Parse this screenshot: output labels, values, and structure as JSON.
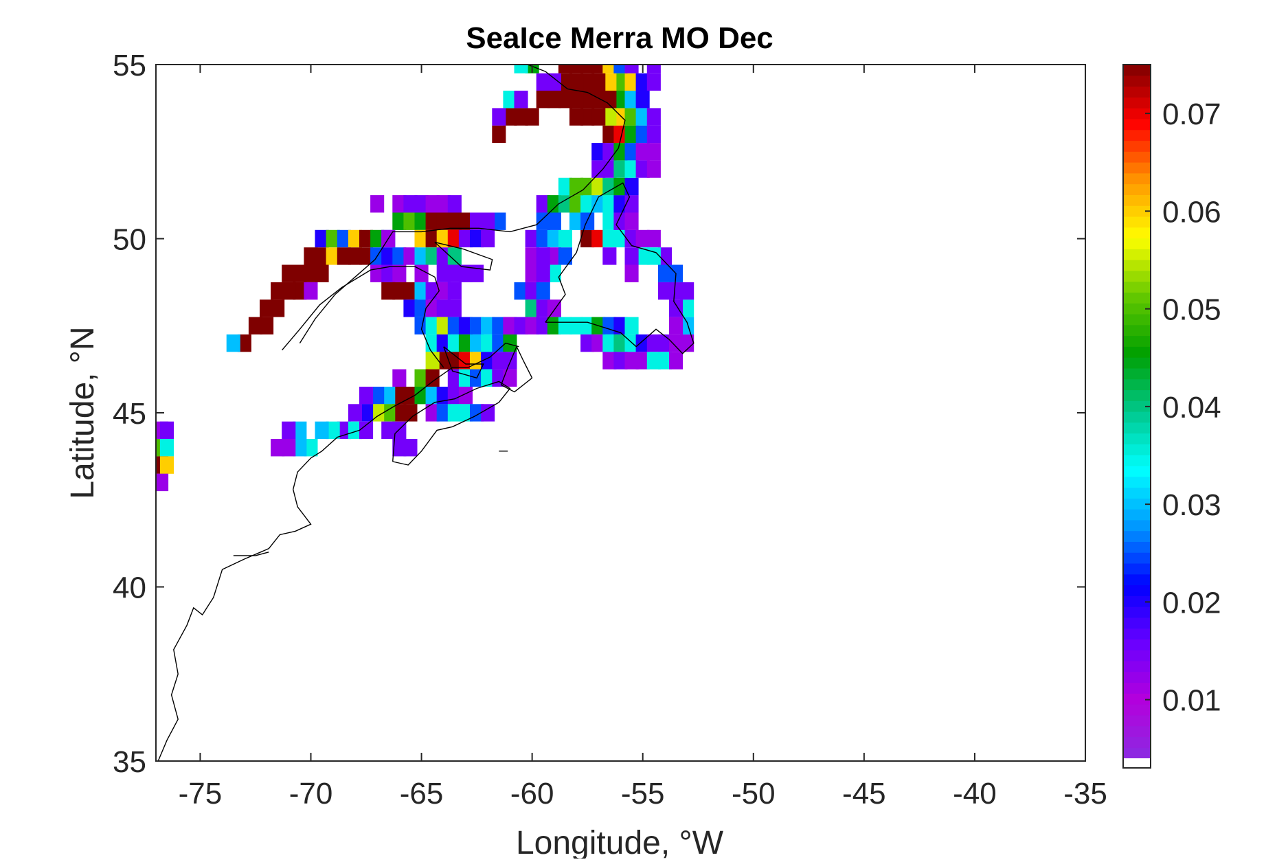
{
  "chart_data": {
    "type": "heatmap",
    "title": "SeaIce Merra MO Dec",
    "xlabel": "Longitude, °W",
    "ylabel": "Latitude, °N",
    "xlim": [
      -77,
      -35
    ],
    "ylim": [
      35,
      55
    ],
    "x_ticks": [
      -75,
      -70,
      -65,
      -60,
      -55,
      -50,
      -45,
      -40,
      -35
    ],
    "y_ticks": [
      35,
      40,
      45,
      50,
      55
    ],
    "colorbar": {
      "range": [
        0.004,
        0.075
      ],
      "ticks": [
        0.01,
        0.02,
        0.03,
        0.04,
        0.05,
        0.06,
        0.07
      ],
      "tick_labels": [
        "0.01",
        "0.02",
        "0.03",
        "0.04",
        "0.05",
        "0.06",
        "0.07"
      ],
      "colors": [
        "#8a2be2",
        "#b400dc",
        "#6a00ff",
        "#0000ff",
        "#0096ff",
        "#00ffff",
        "#00c88c",
        "#00a000",
        "#64c800",
        "#ffff00",
        "#ff9600",
        "#ff0000",
        "#7f0000"
      ]
    },
    "grid_step": [
      0.625,
      0.5
    ],
    "cells": [
      [
        -73.0,
        47.0,
        0.075
      ],
      [
        -72.5,
        47.5,
        0.075
      ],
      [
        -72.0,
        48.0,
        0.075
      ],
      [
        -71.5,
        48.5,
        0.075
      ],
      [
        -71.0,
        49.0,
        0.075
      ],
      [
        -70.5,
        49.0,
        0.075
      ],
      [
        -70.0,
        49.5,
        0.075
      ],
      [
        -69.5,
        49.5,
        0.075
      ],
      [
        -69.0,
        49.5,
        0.06
      ],
      [
        -68.5,
        49.5,
        0.075
      ],
      [
        -68.0,
        49.5,
        0.075
      ],
      [
        -67.5,
        49.5,
        0.075
      ],
      [
        -69.5,
        49.0,
        0.075
      ],
      [
        -70.0,
        49.0,
        0.075
      ],
      [
        -70.5,
        48.5,
        0.075
      ],
      [
        -71.0,
        48.5,
        0.075
      ],
      [
        -71.5,
        48.0,
        0.075
      ],
      [
        -72.0,
        47.5,
        0.075
      ],
      [
        -73.5,
        47.0,
        0.03
      ],
      [
        -70.0,
        48.5,
        0.012
      ],
      [
        -69.5,
        50.0,
        0.02
      ],
      [
        -69.0,
        50.0,
        0.05
      ],
      [
        -68.5,
        50.0,
        0.025
      ],
      [
        -68.0,
        50.0,
        0.06
      ],
      [
        -67.5,
        50.0,
        0.075
      ],
      [
        -67.0,
        50.0,
        0.045
      ],
      [
        -66.5,
        50.0,
        0.025
      ],
      [
        -66.0,
        50.5,
        0.045
      ],
      [
        -65.5,
        50.5,
        0.05
      ],
      [
        -65.0,
        50.5,
        0.045
      ],
      [
        -64.5,
        50.5,
        0.075
      ],
      [
        -64.0,
        50.5,
        0.075
      ],
      [
        -63.5,
        50.5,
        0.075
      ],
      [
        -63.0,
        50.5,
        0.075
      ],
      [
        -67.0,
        51.0,
        0.012
      ],
      [
        -66.0,
        51.0,
        0.012
      ],
      [
        -65.5,
        51.0,
        0.015
      ],
      [
        -65.0,
        51.0,
        0.015
      ],
      [
        -64.5,
        51.0,
        0.012
      ],
      [
        -64.0,
        51.0,
        0.012
      ],
      [
        -63.5,
        51.0,
        0.015
      ],
      [
        -67.0,
        49.5,
        0.025
      ],
      [
        -66.5,
        49.5,
        0.02
      ],
      [
        -66.0,
        49.5,
        0.025
      ],
      [
        -65.5,
        49.5,
        0.012
      ],
      [
        -65.0,
        49.5,
        0.03
      ],
      [
        -64.5,
        49.5,
        0.04
      ],
      [
        -64.0,
        49.5,
        0.015
      ],
      [
        -63.5,
        49.5,
        0.04
      ],
      [
        -66.5,
        50.0,
        0.012
      ],
      [
        -65.0,
        50.0,
        0.06
      ],
      [
        -64.5,
        50.0,
        0.075
      ],
      [
        -64.0,
        50.0,
        0.06
      ],
      [
        -63.5,
        50.0,
        0.07
      ],
      [
        -63.0,
        50.0,
        0.015
      ],
      [
        -62.5,
        50.0,
        0.02
      ],
      [
        -62.0,
        50.0,
        0.015
      ],
      [
        -61.5,
        50.5,
        0.025
      ],
      [
        -62.0,
        50.5,
        0.015
      ],
      [
        -62.5,
        50.5,
        0.015
      ],
      [
        -67.0,
        49.0,
        0.012
      ],
      [
        -66.5,
        49.0,
        0.015
      ],
      [
        -66.0,
        49.0,
        0.012
      ],
      [
        -65.0,
        49.0,
        0.012
      ],
      [
        -64.0,
        49.0,
        0.015
      ],
      [
        -63.5,
        49.0,
        0.015
      ],
      [
        -63.0,
        49.0,
        0.015
      ],
      [
        -62.5,
        49.0,
        0.015
      ],
      [
        -66.5,
        48.5,
        0.075
      ],
      [
        -66.0,
        48.5,
        0.075
      ],
      [
        -65.5,
        48.5,
        0.075
      ],
      [
        -65.0,
        48.5,
        0.03
      ],
      [
        -64.5,
        48.5,
        0.015
      ],
      [
        -64.0,
        48.5,
        0.012
      ],
      [
        -63.5,
        48.5,
        0.015
      ],
      [
        -65.5,
        48.0,
        0.02
      ],
      [
        -65.0,
        48.0,
        0.025
      ],
      [
        -64.5,
        48.0,
        0.012
      ],
      [
        -64.0,
        48.0,
        0.015
      ],
      [
        -63.5,
        48.0,
        0.015
      ],
      [
        -65.0,
        47.5,
        0.025
      ],
      [
        -64.5,
        47.5,
        0.035
      ],
      [
        -64.0,
        47.5,
        0.055
      ],
      [
        -63.5,
        47.5,
        0.025
      ],
      [
        -63.0,
        47.5,
        0.02
      ],
      [
        -62.5,
        47.5,
        0.025
      ],
      [
        -62.0,
        47.5,
        0.03
      ],
      [
        -61.5,
        47.5,
        0.025
      ],
      [
        -61.0,
        47.5,
        0.015
      ],
      [
        -64.5,
        47.0,
        0.035
      ],
      [
        -64.0,
        47.0,
        0.02
      ],
      [
        -63.5,
        47.0,
        0.035
      ],
      [
        -63.0,
        47.0,
        0.045
      ],
      [
        -62.5,
        47.0,
        0.03
      ],
      [
        -62.0,
        47.0,
        0.035
      ],
      [
        -61.5,
        47.0,
        0.025
      ],
      [
        -61.0,
        47.0,
        0.045
      ],
      [
        -64.0,
        46.5,
        0.075
      ],
      [
        -63.5,
        46.5,
        0.075
      ],
      [
        -63.0,
        46.5,
        0.07
      ],
      [
        -62.5,
        46.5,
        0.06
      ],
      [
        -62.0,
        46.5,
        0.02
      ],
      [
        -61.5,
        46.5,
        0.015
      ],
      [
        -61.0,
        46.5,
        0.015
      ],
      [
        -64.5,
        46.5,
        0.055
      ],
      [
        -63.5,
        46.0,
        0.015
      ],
      [
        -63.0,
        46.0,
        0.035
      ],
      [
        -62.5,
        46.0,
        0.025
      ],
      [
        -62.0,
        46.0,
        0.035
      ],
      [
        -61.5,
        46.0,
        0.015
      ],
      [
        -61.0,
        46.0,
        0.012
      ],
      [
        -65.0,
        46.0,
        0.05
      ],
      [
        -64.5,
        46.0,
        0.075
      ],
      [
        -65.5,
        45.5,
        0.075
      ],
      [
        -66.0,
        45.5,
        0.075
      ],
      [
        -66.5,
        45.5,
        0.03
      ],
      [
        -67.0,
        45.5,
        0.025
      ],
      [
        -67.5,
        45.5,
        0.015
      ],
      [
        -65.0,
        45.5,
        0.045
      ],
      [
        -64.5,
        45.5,
        0.03
      ],
      [
        -64.0,
        45.5,
        0.02
      ],
      [
        -63.5,
        45.5,
        0.015
      ],
      [
        -63.0,
        45.5,
        0.012
      ],
      [
        -65.5,
        45.0,
        0.075
      ],
      [
        -66.0,
        45.0,
        0.075
      ],
      [
        -66.5,
        45.0,
        0.05
      ],
      [
        -67.0,
        45.0,
        0.055
      ],
      [
        -67.5,
        45.0,
        0.02
      ],
      [
        -68.0,
        45.0,
        0.015
      ],
      [
        -68.5,
        44.5,
        0.015
      ],
      [
        -69.0,
        44.5,
        0.035
      ],
      [
        -69.5,
        44.5,
        0.03
      ],
      [
        -70.0,
        44.0,
        0.035
      ],
      [
        -70.5,
        44.0,
        0.03
      ],
      [
        -71.0,
        44.0,
        0.012
      ],
      [
        -68.0,
        44.5,
        0.035
      ],
      [
        -67.5,
        44.5,
        0.015
      ],
      [
        -66.5,
        44.5,
        0.015
      ],
      [
        -66.0,
        44.5,
        0.015
      ],
      [
        -64.5,
        45.0,
        0.012
      ],
      [
        -64.0,
        45.0,
        0.025
      ],
      [
        -63.5,
        45.0,
        0.035
      ],
      [
        -63.0,
        45.0,
        0.035
      ],
      [
        -62.5,
        45.0,
        0.025
      ],
      [
        -62.0,
        45.0,
        0.015
      ],
      [
        -66.0,
        44.0,
        0.015
      ],
      [
        -65.5,
        44.0,
        0.015
      ],
      [
        -66.0,
        46.0,
        0.012
      ],
      [
        -70.5,
        44.5,
        0.03
      ],
      [
        -71.5,
        44.0,
        0.012
      ],
      [
        -71.0,
        44.5,
        0.015
      ],
      [
        -76.75,
        44.5,
        0.012
      ],
      [
        -76.5,
        44.5,
        0.015
      ],
      [
        -76.75,
        44.0,
        0.05
      ],
      [
        -76.5,
        44.0,
        0.035
      ],
      [
        -76.75,
        43.5,
        0.075
      ],
      [
        -76.5,
        43.5,
        0.06
      ],
      [
        -76.75,
        43.0,
        0.012
      ],
      [
        -60.0,
        50.0,
        0.015
      ],
      [
        -59.5,
        50.0,
        0.025
      ],
      [
        -59.0,
        50.0,
        0.03
      ],
      [
        -58.5,
        50.0,
        0.035
      ],
      [
        -57.5,
        50.0,
        0.075
      ],
      [
        -57.0,
        50.0,
        0.07
      ],
      [
        -56.5,
        50.0,
        0.035
      ],
      [
        -56.0,
        50.0,
        0.035
      ],
      [
        -55.5,
        50.0,
        0.015
      ],
      [
        -55.0,
        50.0,
        0.012
      ],
      [
        -54.5,
        50.0,
        0.012
      ],
      [
        -59.5,
        50.5,
        0.025
      ],
      [
        -59.0,
        50.5,
        0.025
      ],
      [
        -58.0,
        50.5,
        0.03
      ],
      [
        -57.5,
        50.5,
        0.025
      ],
      [
        -56.5,
        50.5,
        0.035
      ],
      [
        -56.0,
        50.5,
        0.015
      ],
      [
        -55.5,
        50.5,
        0.012
      ],
      [
        -59.5,
        51.0,
        0.015
      ],
      [
        -59.0,
        51.0,
        0.045
      ],
      [
        -58.5,
        51.0,
        0.04
      ],
      [
        -58.0,
        51.0,
        0.05
      ],
      [
        -57.5,
        51.0,
        0.035
      ],
      [
        -57.0,
        51.0,
        0.03
      ],
      [
        -56.5,
        51.0,
        0.035
      ],
      [
        -56.0,
        51.0,
        0.02
      ],
      [
        -55.5,
        51.0,
        0.015
      ],
      [
        -58.5,
        51.5,
        0.035
      ],
      [
        -58.0,
        51.5,
        0.05
      ],
      [
        -57.5,
        51.5,
        0.05
      ],
      [
        -57.0,
        51.5,
        0.055
      ],
      [
        -56.5,
        51.5,
        0.04
      ],
      [
        -56.0,
        51.5,
        0.045
      ],
      [
        -55.5,
        51.5,
        0.02
      ],
      [
        -57.0,
        52.0,
        0.015
      ],
      [
        -56.5,
        52.0,
        0.015
      ],
      [
        -56.0,
        52.0,
        0.04
      ],
      [
        -55.5,
        52.0,
        0.035
      ],
      [
        -55.0,
        52.0,
        0.015
      ],
      [
        -54.5,
        52.0,
        0.012
      ],
      [
        -57.0,
        52.5,
        0.02
      ],
      [
        -56.5,
        52.5,
        0.015
      ],
      [
        -56.0,
        52.5,
        0.045
      ],
      [
        -55.5,
        52.5,
        0.025
      ],
      [
        -55.0,
        52.5,
        0.012
      ],
      [
        -54.5,
        52.5,
        0.012
      ],
      [
        -56.5,
        53.0,
        0.075
      ],
      [
        -56.0,
        53.0,
        0.07
      ],
      [
        -55.5,
        53.0,
        0.045
      ],
      [
        -55.0,
        53.0,
        0.025
      ],
      [
        -54.5,
        53.0,
        0.015
      ],
      [
        -56.0,
        53.5,
        0.06
      ],
      [
        -56.5,
        53.5,
        0.055
      ],
      [
        -55.5,
        53.5,
        0.05
      ],
      [
        -55.0,
        53.5,
        0.03
      ],
      [
        -54.5,
        53.5,
        0.015
      ],
      [
        -56.0,
        54.0,
        0.045
      ],
      [
        -55.5,
        54.0,
        0.03
      ],
      [
        -55.0,
        54.0,
        0.02
      ],
      [
        -56.0,
        54.5,
        0.05
      ],
      [
        -55.5,
        54.5,
        0.06
      ],
      [
        -55.0,
        54.5,
        0.02
      ],
      [
        -54.5,
        54.5,
        0.015
      ],
      [
        -56.5,
        54.5,
        0.06
      ],
      [
        -57.0,
        54.5,
        0.075
      ],
      [
        -57.5,
        54.5,
        0.075
      ],
      [
        -58.0,
        54.5,
        0.075
      ],
      [
        -58.5,
        54.5,
        0.075
      ],
      [
        -58.5,
        55.0,
        0.075
      ],
      [
        -58.0,
        55.0,
        0.075
      ],
      [
        -57.5,
        55.0,
        0.075
      ],
      [
        -57.0,
        55.0,
        0.075
      ],
      [
        -56.5,
        55.0,
        0.06
      ],
      [
        -56.0,
        55.0,
        0.025
      ],
      [
        -55.5,
        55.0,
        0.015
      ],
      [
        -54.5,
        55.0,
        0.015
      ],
      [
        -59.0,
        54.5,
        0.015
      ],
      [
        -59.5,
        54.5,
        0.015
      ],
      [
        -60.0,
        55.0,
        0.045
      ],
      [
        -60.5,
        55.0,
        0.035
      ],
      [
        -57.0,
        54.0,
        0.075
      ],
      [
        -57.5,
        54.0,
        0.075
      ],
      [
        -58.0,
        54.0,
        0.075
      ],
      [
        -58.5,
        54.0,
        0.075
      ],
      [
        -59.0,
        54.0,
        0.075
      ],
      [
        -59.5,
        54.0,
        0.075
      ],
      [
        -60.0,
        53.5,
        0.075
      ],
      [
        -60.5,
        53.5,
        0.075
      ],
      [
        -61.0,
        53.5,
        0.075
      ],
      [
        -61.5,
        53.0,
        0.075
      ],
      [
        -61.0,
        54.0,
        0.035
      ],
      [
        -61.5,
        53.5,
        0.015
      ],
      [
        -57.5,
        53.5,
        0.075
      ],
      [
        -57.0,
        53.5,
        0.075
      ],
      [
        -58.0,
        53.5,
        0.075
      ],
      [
        -60.5,
        54.0,
        0.015
      ],
      [
        -56.5,
        54.0,
        0.075
      ],
      [
        -60.0,
        49.5,
        0.012
      ],
      [
        -60.0,
        49.0,
        0.012
      ],
      [
        -60.5,
        48.5,
        0.025
      ],
      [
        -60.0,
        48.5,
        0.015
      ],
      [
        -59.5,
        48.5,
        0.025
      ],
      [
        -60.0,
        48.0,
        0.04
      ],
      [
        -59.5,
        48.0,
        0.015
      ],
      [
        -59.0,
        48.0,
        0.012
      ],
      [
        -61.0,
        47.5,
        0.012
      ],
      [
        -60.5,
        47.5,
        0.015
      ],
      [
        -60.0,
        47.5,
        0.012
      ],
      [
        -59.5,
        47.5,
        0.015
      ],
      [
        -59.0,
        47.5,
        0.045
      ],
      [
        -58.5,
        47.5,
        0.035
      ],
      [
        -58.0,
        47.5,
        0.035
      ],
      [
        -57.5,
        47.5,
        0.035
      ],
      [
        -57.0,
        47.5,
        0.045
      ],
      [
        -56.5,
        47.5,
        0.025
      ],
      [
        -56.0,
        47.5,
        0.02
      ],
      [
        -55.5,
        47.5,
        0.035
      ],
      [
        -57.5,
        47.0,
        0.015
      ],
      [
        -57.0,
        47.0,
        0.012
      ],
      [
        -56.5,
        47.0,
        0.035
      ],
      [
        -56.0,
        47.0,
        0.04
      ],
      [
        -55.5,
        47.0,
        0.035
      ],
      [
        -55.0,
        47.0,
        0.02
      ],
      [
        -54.5,
        47.0,
        0.015
      ],
      [
        -54.0,
        47.0,
        0.015
      ],
      [
        -53.5,
        47.0,
        0.012
      ],
      [
        -56.5,
        46.5,
        0.012
      ],
      [
        -56.0,
        46.5,
        0.015
      ],
      [
        -55.5,
        46.5,
        0.012
      ],
      [
        -55.0,
        46.5,
        0.012
      ],
      [
        -54.5,
        46.5,
        0.035
      ],
      [
        -54.0,
        46.5,
        0.035
      ],
      [
        -53.5,
        46.5,
        0.012
      ],
      [
        -53.0,
        47.0,
        0.012
      ],
      [
        -53.0,
        47.5,
        0.03
      ],
      [
        -53.5,
        47.5,
        0.012
      ],
      [
        -53.0,
        48.0,
        0.035
      ],
      [
        -53.5,
        48.0,
        0.015
      ],
      [
        -53.0,
        48.5,
        0.015
      ],
      [
        -53.5,
        48.5,
        0.015
      ],
      [
        -54.0,
        48.5,
        0.015
      ],
      [
        -53.5,
        49.0,
        0.025
      ],
      [
        -54.0,
        49.0,
        0.025
      ],
      [
        -54.0,
        49.5,
        0.015
      ],
      [
        -54.5,
        49.5,
        0.035
      ],
      [
        -55.0,
        49.5,
        0.035
      ],
      [
        -55.5,
        49.5,
        0.015
      ],
      [
        -56.5,
        49.5,
        0.015
      ],
      [
        -59.0,
        49.5,
        0.012
      ],
      [
        -59.5,
        49.5,
        0.015
      ],
      [
        -58.5,
        49.5,
        0.025
      ],
      [
        -59.0,
        49.0,
        0.035
      ],
      [
        -55.5,
        49.0,
        0.012
      ],
      [
        -59.5,
        49.0,
        0.015
      ]
    ]
  }
}
